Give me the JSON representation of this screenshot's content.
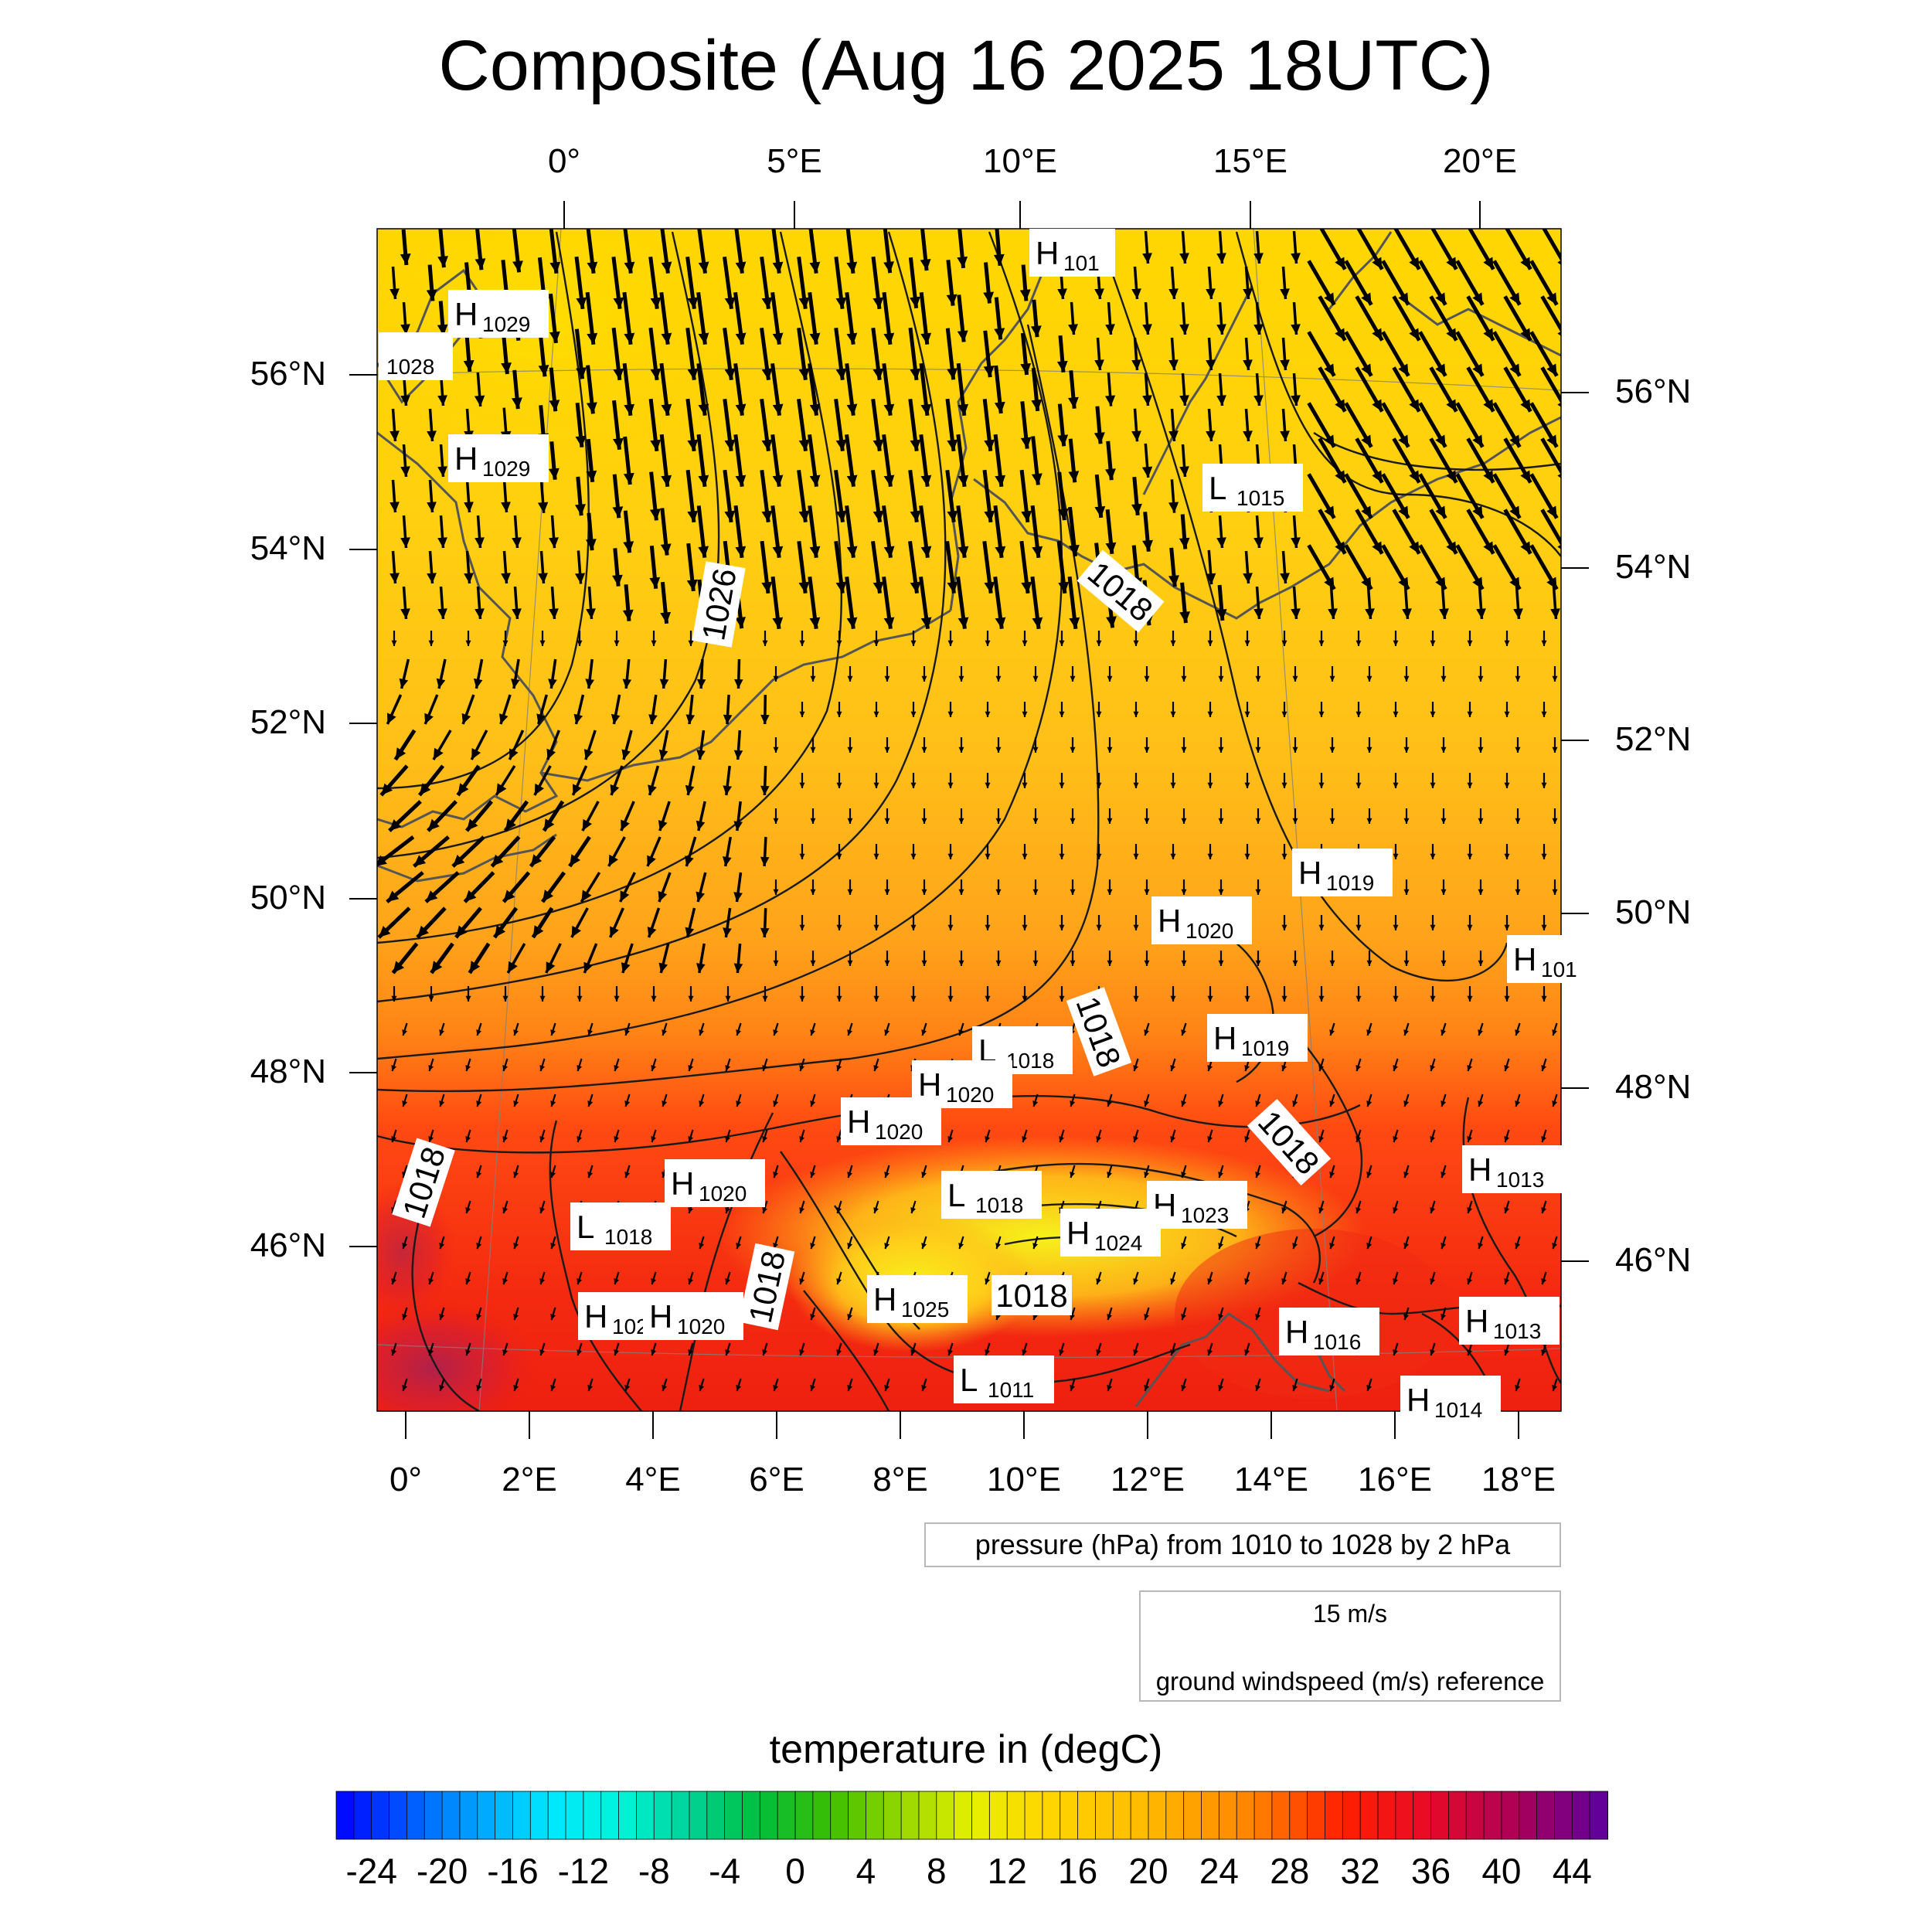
{
  "title": "Composite (Aug 16 2025 18UTC)",
  "top_axis_labels": [
    "0°",
    "5°E",
    "10°E",
    "15°E",
    "20°E"
  ],
  "bottom_axis_labels": [
    "0°",
    "2°E",
    "4°E",
    "6°E",
    "8°E",
    "10°E",
    "12°E",
    "14°E",
    "16°E",
    "18°E"
  ],
  "left_axis_labels": [
    "56°N",
    "54°N",
    "52°N",
    "50°N",
    "48°N",
    "46°N"
  ],
  "right_axis_labels": [
    "56°N",
    "54°N",
    "52°N",
    "50°N",
    "48°N",
    "46°N"
  ],
  "pressure_legend": "pressure (hPa) from 1010 to 1028 by 2 hPa",
  "vector_legend": {
    "speed": "15 m/s",
    "text": "ground windspeed (m/s) reference"
  },
  "colorbar": {
    "title": "temperature in (degC)",
    "min": -26,
    "max": 46,
    "step": 1,
    "tick_labels": [
      "-24",
      "-20",
      "-16",
      "-12",
      "-8",
      "-4",
      "0",
      "4",
      "8",
      "12",
      "16",
      "20",
      "24",
      "28",
      "32",
      "36",
      "40",
      "44"
    ]
  },
  "contour_labels": [
    {
      "text": "1026",
      "angle": -80
    },
    {
      "text": "1018",
      "angle": 40
    },
    {
      "text": "1018",
      "angle": 70
    },
    {
      "text": "1018",
      "angle": 48
    },
    {
      "text": "1018",
      "angle": -72
    },
    {
      "text": "1018",
      "angle": -78
    },
    {
      "text": "1018",
      "angle": 0
    }
  ],
  "pressure_centers": [
    {
      "kind": "H",
      "value": "1029"
    },
    {
      "kind": "",
      "value": "1028"
    },
    {
      "kind": "H",
      "value": "1029"
    },
    {
      "kind": "H",
      "value": "101"
    },
    {
      "kind": "L",
      "value": "1015"
    },
    {
      "kind": "H",
      "value": "1019"
    },
    {
      "kind": "H",
      "value": "1020"
    },
    {
      "kind": "H",
      "value": "101"
    },
    {
      "kind": "H",
      "value": "1019"
    },
    {
      "kind": "L",
      "value": "1018"
    },
    {
      "kind": "H",
      "value": "1020"
    },
    {
      "kind": "H",
      "value": "1020"
    },
    {
      "kind": "H",
      "value": "1013"
    },
    {
      "kind": "H",
      "value": "1020"
    },
    {
      "kind": "L",
      "value": "1018"
    },
    {
      "kind": "L",
      "value": "1018"
    },
    {
      "kind": "H",
      "value": "1023"
    },
    {
      "kind": "H",
      "value": "1024"
    },
    {
      "kind": "H",
      "value": "1025"
    },
    {
      "kind": "H",
      "value": "102"
    },
    {
      "kind": "H",
      "value": "1020"
    },
    {
      "kind": "H",
      "value": "1016"
    },
    {
      "kind": "H",
      "value": "1013"
    },
    {
      "kind": "L",
      "value": "1011"
    },
    {
      "kind": "H",
      "value": "1014"
    }
  ]
}
